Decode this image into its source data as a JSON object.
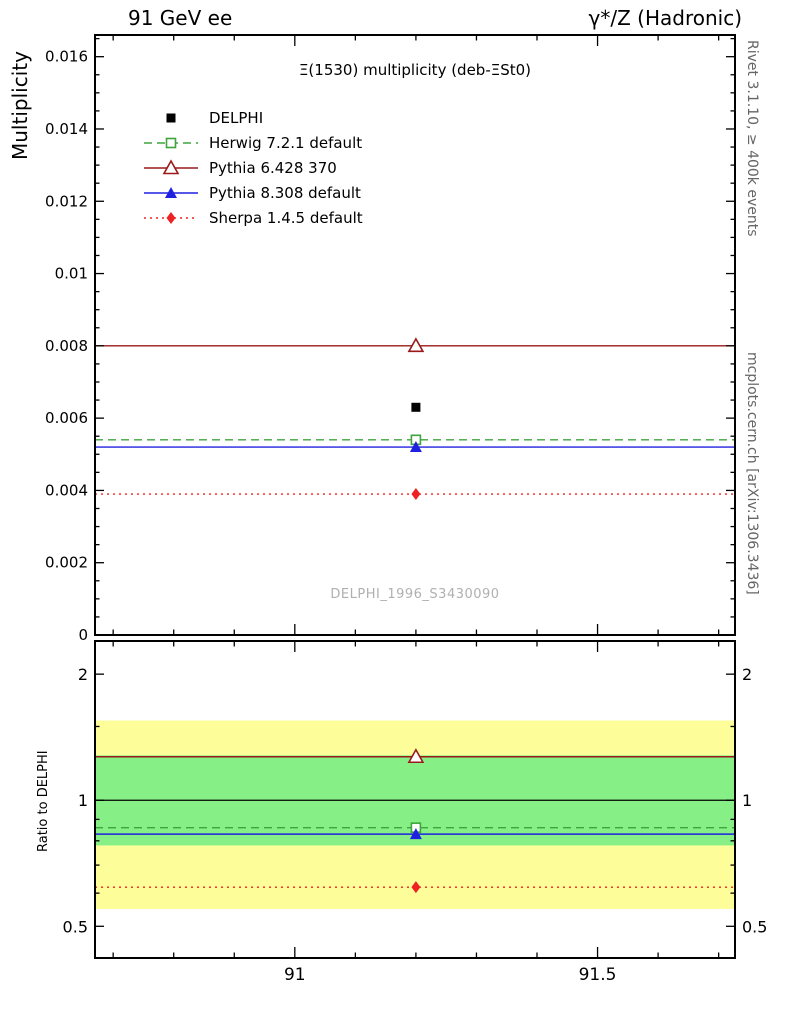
{
  "header": {
    "left": "91 GeV ee",
    "right": "γ*/Z (Hadronic)"
  },
  "plot": {
    "title": "Ξ(1530) multiplicity (deb-ΞSt0)",
    "watermark": "DELPHI_1996_S3430090",
    "ylabel": "Multiplicity",
    "ratio_ylabel": "Ratio to DELPHI"
  },
  "side_labels": {
    "rivet": "Rivet 3.1.10, ≥ 400k events",
    "mcplots": "mcplots.cern.ch [arXiv:1306.3436]"
  },
  "legend": [
    {
      "label": "DELPHI",
      "color": "#000000",
      "line": "none",
      "marker": "square-filled"
    },
    {
      "label": "Herwig 7.2.1 default",
      "color": "#3fa33f",
      "line": "dashed",
      "marker": "square-open"
    },
    {
      "label": "Pythia 6.428 370",
      "color": "#9a1a1a",
      "line": "solid",
      "marker": "triangle-open"
    },
    {
      "label": "Pythia 8.308 default",
      "color": "#2020e0",
      "line": "solid",
      "marker": "triangle-filled"
    },
    {
      "label": "Sherpa 1.4.5 default",
      "color": "#ee2222",
      "line": "dotted",
      "marker": "diamond-filled"
    }
  ],
  "chart_data": [
    {
      "type": "line",
      "title": "Ξ(1530) multiplicity (deb-ΞSt0)",
      "xlabel": "",
      "ylabel": "Multiplicity",
      "xlim": [
        90.67,
        91.727
      ],
      "ylim": [
        0,
        0.0166
      ],
      "xticks": [
        91,
        91.5
      ],
      "xtick_labels": [
        "91",
        "91.5"
      ],
      "x_minor_step": 0.1,
      "yticks": [
        0,
        0.002,
        0.004,
        0.006,
        0.008,
        0.01,
        0.012,
        0.014,
        0.016
      ],
      "ytick_labels": [
        "0",
        "0.002",
        "0.004",
        "0.006",
        "0.008",
        "0.01",
        "0.012",
        "0.014",
        "0.016"
      ],
      "y_minor_step": 0.0005,
      "marker_x": 91.2,
      "legend_position": "top-left",
      "grid": false,
      "series": [
        {
          "name": "DELPHI",
          "y": 0.0063,
          "color": "#000000",
          "line": "none",
          "marker": "square-filled"
        },
        {
          "name": "Herwig 7.2.1 default",
          "y": 0.0054,
          "color": "#3fa33f",
          "line": "dashed",
          "marker": "square-open"
        },
        {
          "name": "Pythia 6.428 370",
          "y": 0.008,
          "color": "#9a1a1a",
          "line": "solid",
          "marker": "triangle-open"
        },
        {
          "name": "Pythia 8.308 default",
          "y": 0.0052,
          "color": "#2020e0",
          "line": "solid",
          "marker": "triangle-filled"
        },
        {
          "name": "Sherpa 1.4.5 default",
          "y": 0.0039,
          "color": "#ee2222",
          "line": "dotted",
          "marker": "diamond-filled"
        }
      ]
    },
    {
      "type": "ratio",
      "ylabel": "Ratio to DELPHI",
      "yscale": "log",
      "ylim": [
        0.42,
        2.4
      ],
      "yticks": [
        0.5,
        1,
        2
      ],
      "ytick_labels": [
        "0.5",
        "1",
        "2"
      ],
      "yticks_minor": [
        0.6,
        0.7,
        0.8,
        0.9,
        1.5
      ],
      "reference_line": 1,
      "marker_x": 91.2,
      "bands": [
        {
          "name": "total-uncertainty-band",
          "color": "#fdfd9a",
          "lo": 0.55,
          "hi": 1.55
        },
        {
          "name": "stat-uncertainty-band",
          "color": "#86f086",
          "lo": 0.78,
          "hi": 1.28
        }
      ],
      "series": [
        {
          "name": "Herwig 7.2.1 default",
          "y": 0.86,
          "color": "#3fa33f",
          "line": "dashed",
          "marker": "square-open"
        },
        {
          "name": "Pythia 6.428 370",
          "y": 1.27,
          "color": "#9a1a1a",
          "line": "solid",
          "marker": "triangle-open"
        },
        {
          "name": "Pythia 8.308 default",
          "y": 0.83,
          "color": "#2020e0",
          "line": "solid",
          "marker": "triangle-filled"
        },
        {
          "name": "Sherpa 1.4.5 default",
          "y": 0.62,
          "color": "#ee2222",
          "line": "dotted",
          "marker": "diamond-filled"
        }
      ]
    }
  ]
}
